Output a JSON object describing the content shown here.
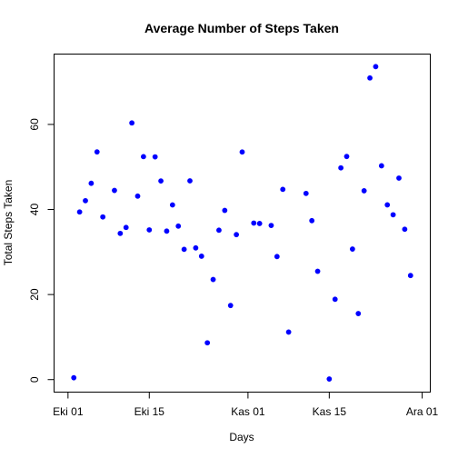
{
  "chart_data": {
    "type": "scatter",
    "title": "Average Number of Steps Taken",
    "xlabel": "Days",
    "ylabel": "Total Steps Taken",
    "point_color": "#0000ff",
    "xlim": [
      "2012-10-01",
      "2012-11-30"
    ],
    "ylim": [
      0,
      73.6
    ],
    "x_ticks": [
      {
        "date": "2012-10-01",
        "label": "Eki 01"
      },
      {
        "date": "2012-10-15",
        "label": "Eki 15"
      },
      {
        "date": "2012-11-01",
        "label": "Kas 01"
      },
      {
        "date": "2012-11-15",
        "label": "Kas 15"
      },
      {
        "date": "2012-12-01",
        "label": "Ara 01"
      }
    ],
    "y_ticks": [
      0,
      20,
      40,
      60
    ],
    "x": [
      "2012-10-02",
      "2012-10-03",
      "2012-10-04",
      "2012-10-05",
      "2012-10-06",
      "2012-10-07",
      "2012-10-09",
      "2012-10-10",
      "2012-10-11",
      "2012-10-12",
      "2012-10-13",
      "2012-10-14",
      "2012-10-15",
      "2012-10-16",
      "2012-10-17",
      "2012-10-18",
      "2012-10-19",
      "2012-10-20",
      "2012-10-21",
      "2012-10-22",
      "2012-10-23",
      "2012-10-24",
      "2012-10-25",
      "2012-10-26",
      "2012-10-27",
      "2012-10-28",
      "2012-10-29",
      "2012-10-30",
      "2012-10-31",
      "2012-11-02",
      "2012-11-03",
      "2012-11-05",
      "2012-11-06",
      "2012-11-07",
      "2012-11-08",
      "2012-11-11",
      "2012-11-12",
      "2012-11-13",
      "2012-11-15",
      "2012-11-16",
      "2012-11-17",
      "2012-11-18",
      "2012-11-19",
      "2012-11-20",
      "2012-11-21",
      "2012-11-22",
      "2012-11-23",
      "2012-11-24",
      "2012-11-25",
      "2012-11-26",
      "2012-11-27",
      "2012-11-28",
      "2012-11-29"
    ],
    "y": [
      0.4375,
      39.4167,
      42.0694,
      46.1597,
      53.5417,
      38.2465,
      44.4826,
      34.375,
      35.7778,
      60.3542,
      43.1458,
      52.4236,
      35.2049,
      52.375,
      46.7083,
      34.9167,
      41.0729,
      36.0938,
      30.6285,
      46.7361,
      30.9653,
      29.0104,
      8.6528,
      23.5347,
      35.1354,
      39.7847,
      17.4236,
      34.0938,
      53.5208,
      36.8056,
      36.7049,
      36.2465,
      28.9375,
      44.7326,
      11.1771,
      43.7778,
      37.3785,
      25.4722,
      0.1424,
      18.8924,
      49.7882,
      52.4653,
      30.6979,
      15.5278,
      44.3993,
      70.9271,
      73.5903,
      50.2708,
      41.0903,
      38.7569,
      47.3819,
      35.3576,
      24.4688
    ]
  }
}
